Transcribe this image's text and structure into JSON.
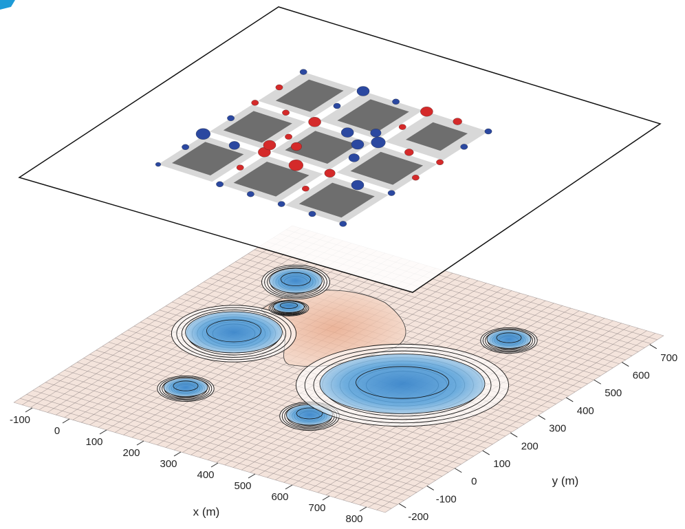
{
  "chart_data": {
    "type": "surface3d",
    "xlabel": "x (m)",
    "ylabel": "y (m)",
    "xlim": [
      -150,
      850
    ],
    "ylim": [
      -250,
      750
    ],
    "xticks": [
      -100,
      0,
      100,
      200,
      300,
      400,
      500,
      600,
      700,
      800
    ],
    "yticks": [
      -200,
      -100,
      0,
      100,
      200,
      300,
      400,
      500,
      600,
      700
    ]
  }
}
